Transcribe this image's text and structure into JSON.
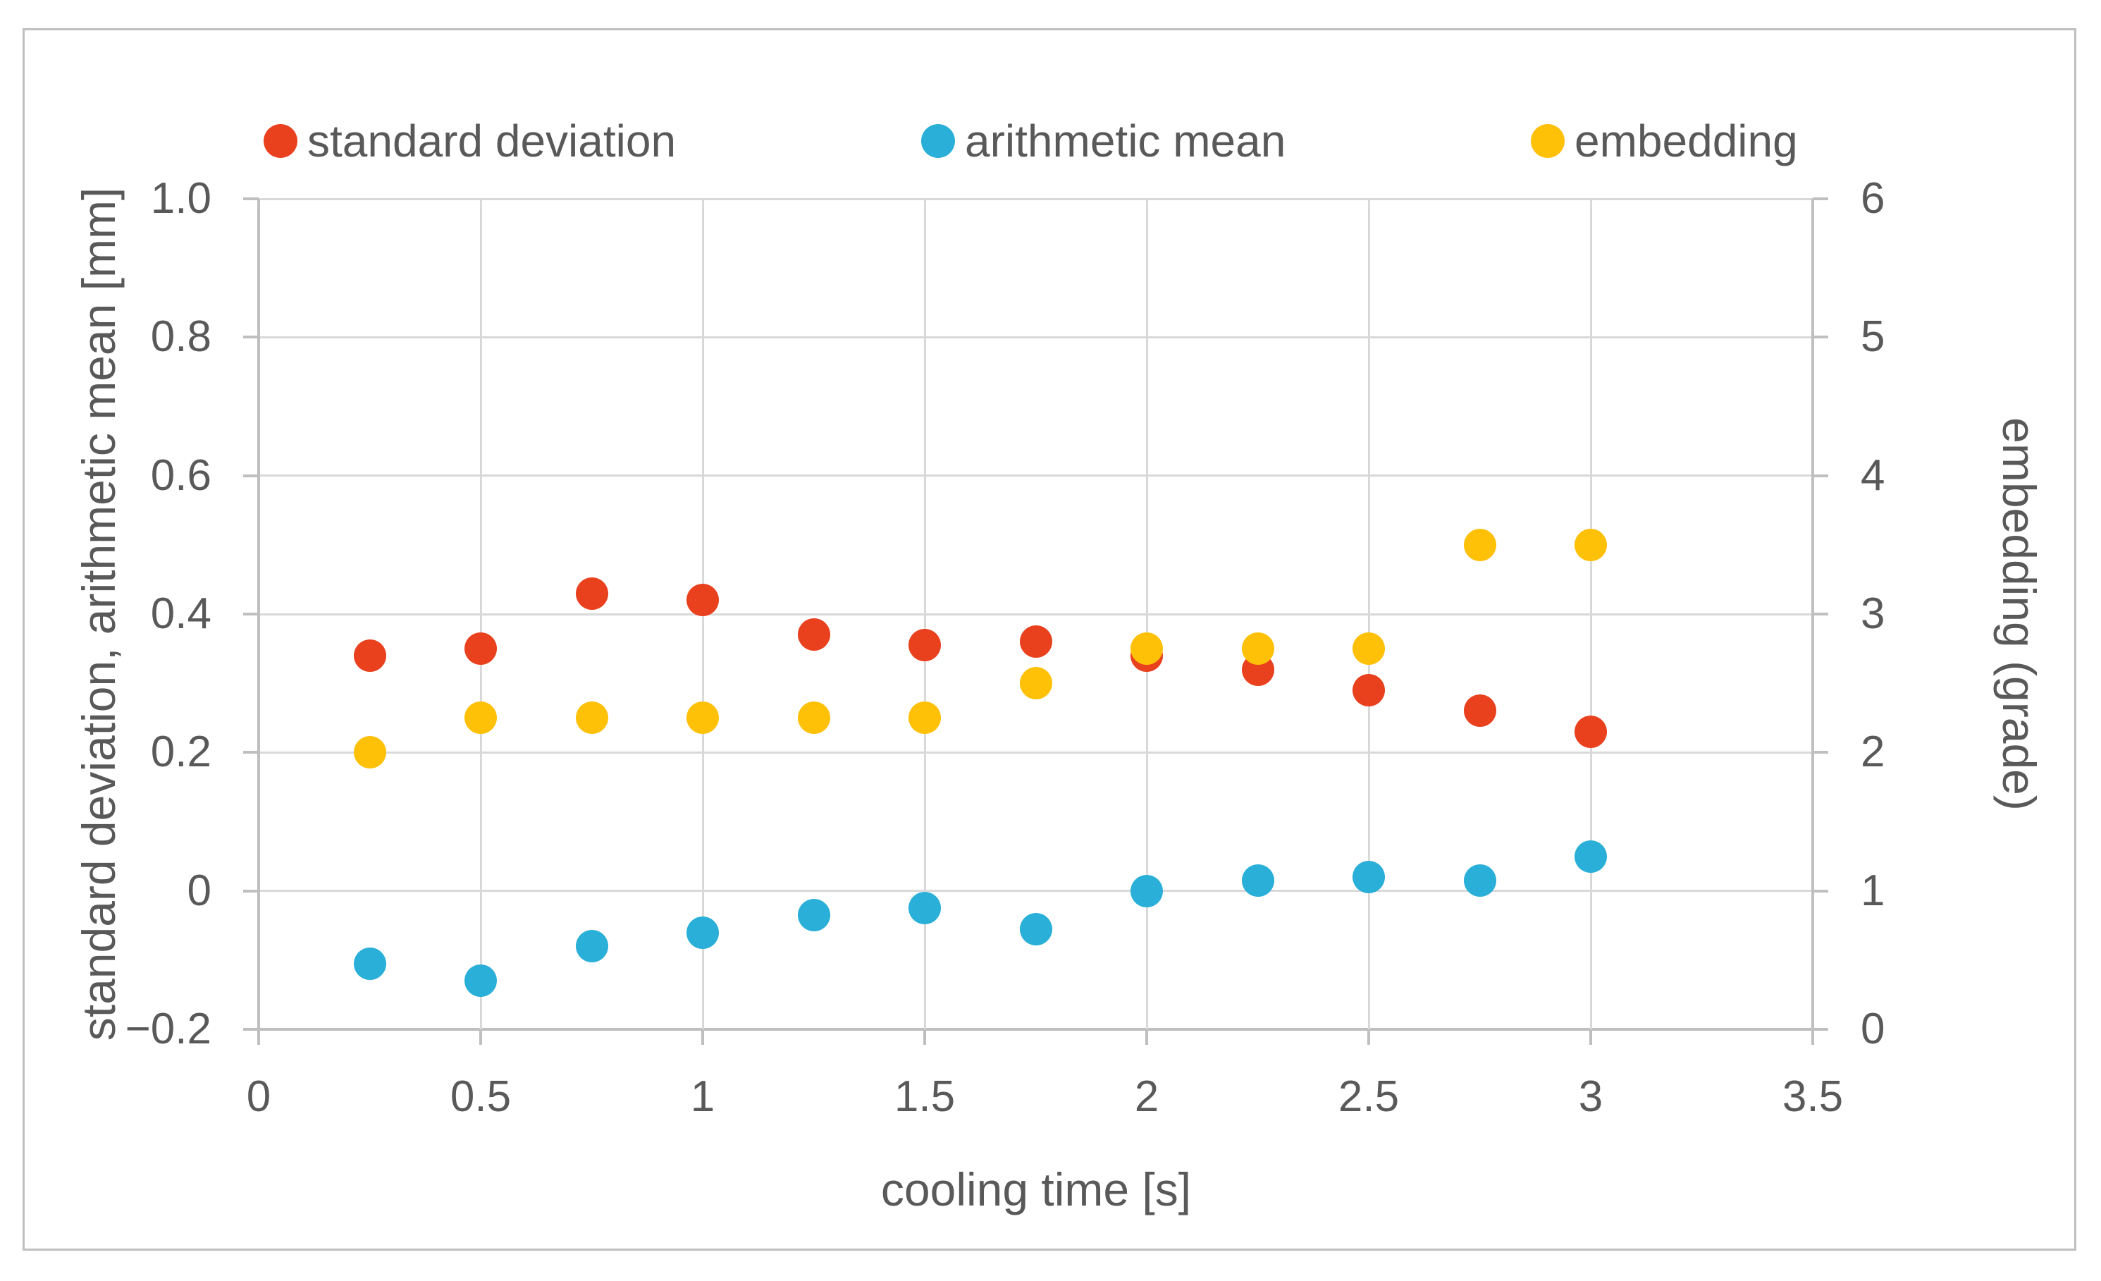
{
  "figure": {
    "background_color": "#FFFFFF",
    "frame_border_color": "#BFBFBF",
    "gridline_color": "#D9D9D9",
    "axis_line_color": "#BFBFBF",
    "text_color": "#595959"
  },
  "legend": {
    "items": [
      {
        "label": "standard deviation",
        "color": "#E9401E"
      },
      {
        "label": "arithmetic mean",
        "color": "#29AFD8"
      },
      {
        "label": "embedding",
        "color": "#FFC008"
      }
    ]
  },
  "chart_data": {
    "type": "scatter",
    "title": "",
    "grid": true,
    "legend_position": "top",
    "x_axis": {
      "label": "cooling time [s]",
      "min": 0,
      "max": 3.5,
      "tick_values": [
        0,
        0.5,
        1,
        1.5,
        2,
        2.5,
        3,
        3.5
      ],
      "tick_labels": [
        "0",
        "0.5",
        "1",
        "1.5",
        "2",
        "2.5",
        "3",
        "3.5"
      ]
    },
    "y_axis_left": {
      "label": "standard deviation, arithmetic mean [mm]",
      "min": -0.2,
      "max": 1.0,
      "tick_values": [
        1.0,
        0.8,
        0.6,
        0.4,
        0.2,
        0,
        -0.2
      ],
      "tick_labels": [
        "1.0",
        "0.8",
        "0.6",
        "0.4",
        "0.2",
        "0",
        "−0.2"
      ]
    },
    "y_axis_right": {
      "label": "embedding (grade)",
      "min": 0,
      "max": 6,
      "tick_values": [
        6,
        5,
        4,
        3,
        2,
        1,
        0
      ],
      "tick_labels": [
        "6",
        "5",
        "4",
        "3",
        "2",
        "1",
        "0"
      ]
    },
    "x_shared": [
      0.25,
      0.5,
      0.75,
      1,
      1.25,
      1.5,
      1.75,
      2,
      2.25,
      2.5,
      2.75,
      3
    ],
    "series": [
      {
        "name": "standard deviation",
        "color": "#E9401E",
        "axis": "left",
        "values": [
          0.34,
          0.35,
          0.43,
          0.42,
          0.37,
          0.355,
          0.36,
          0.34,
          0.32,
          0.29,
          0.26,
          0.23
        ]
      },
      {
        "name": "arithmetic mean",
        "color": "#29AFD8",
        "axis": "left",
        "values": [
          -0.105,
          -0.13,
          -0.08,
          -0.06,
          -0.035,
          -0.025,
          -0.055,
          0,
          0.015,
          0.02,
          0.015,
          0.05
        ]
      },
      {
        "name": "embedding",
        "color": "#FFC008",
        "axis": "right",
        "values": [
          2,
          2.25,
          2.25,
          2.25,
          2.25,
          2.25,
          2.5,
          2.75,
          2.75,
          2.75,
          3.5,
          3.5
        ]
      }
    ]
  }
}
